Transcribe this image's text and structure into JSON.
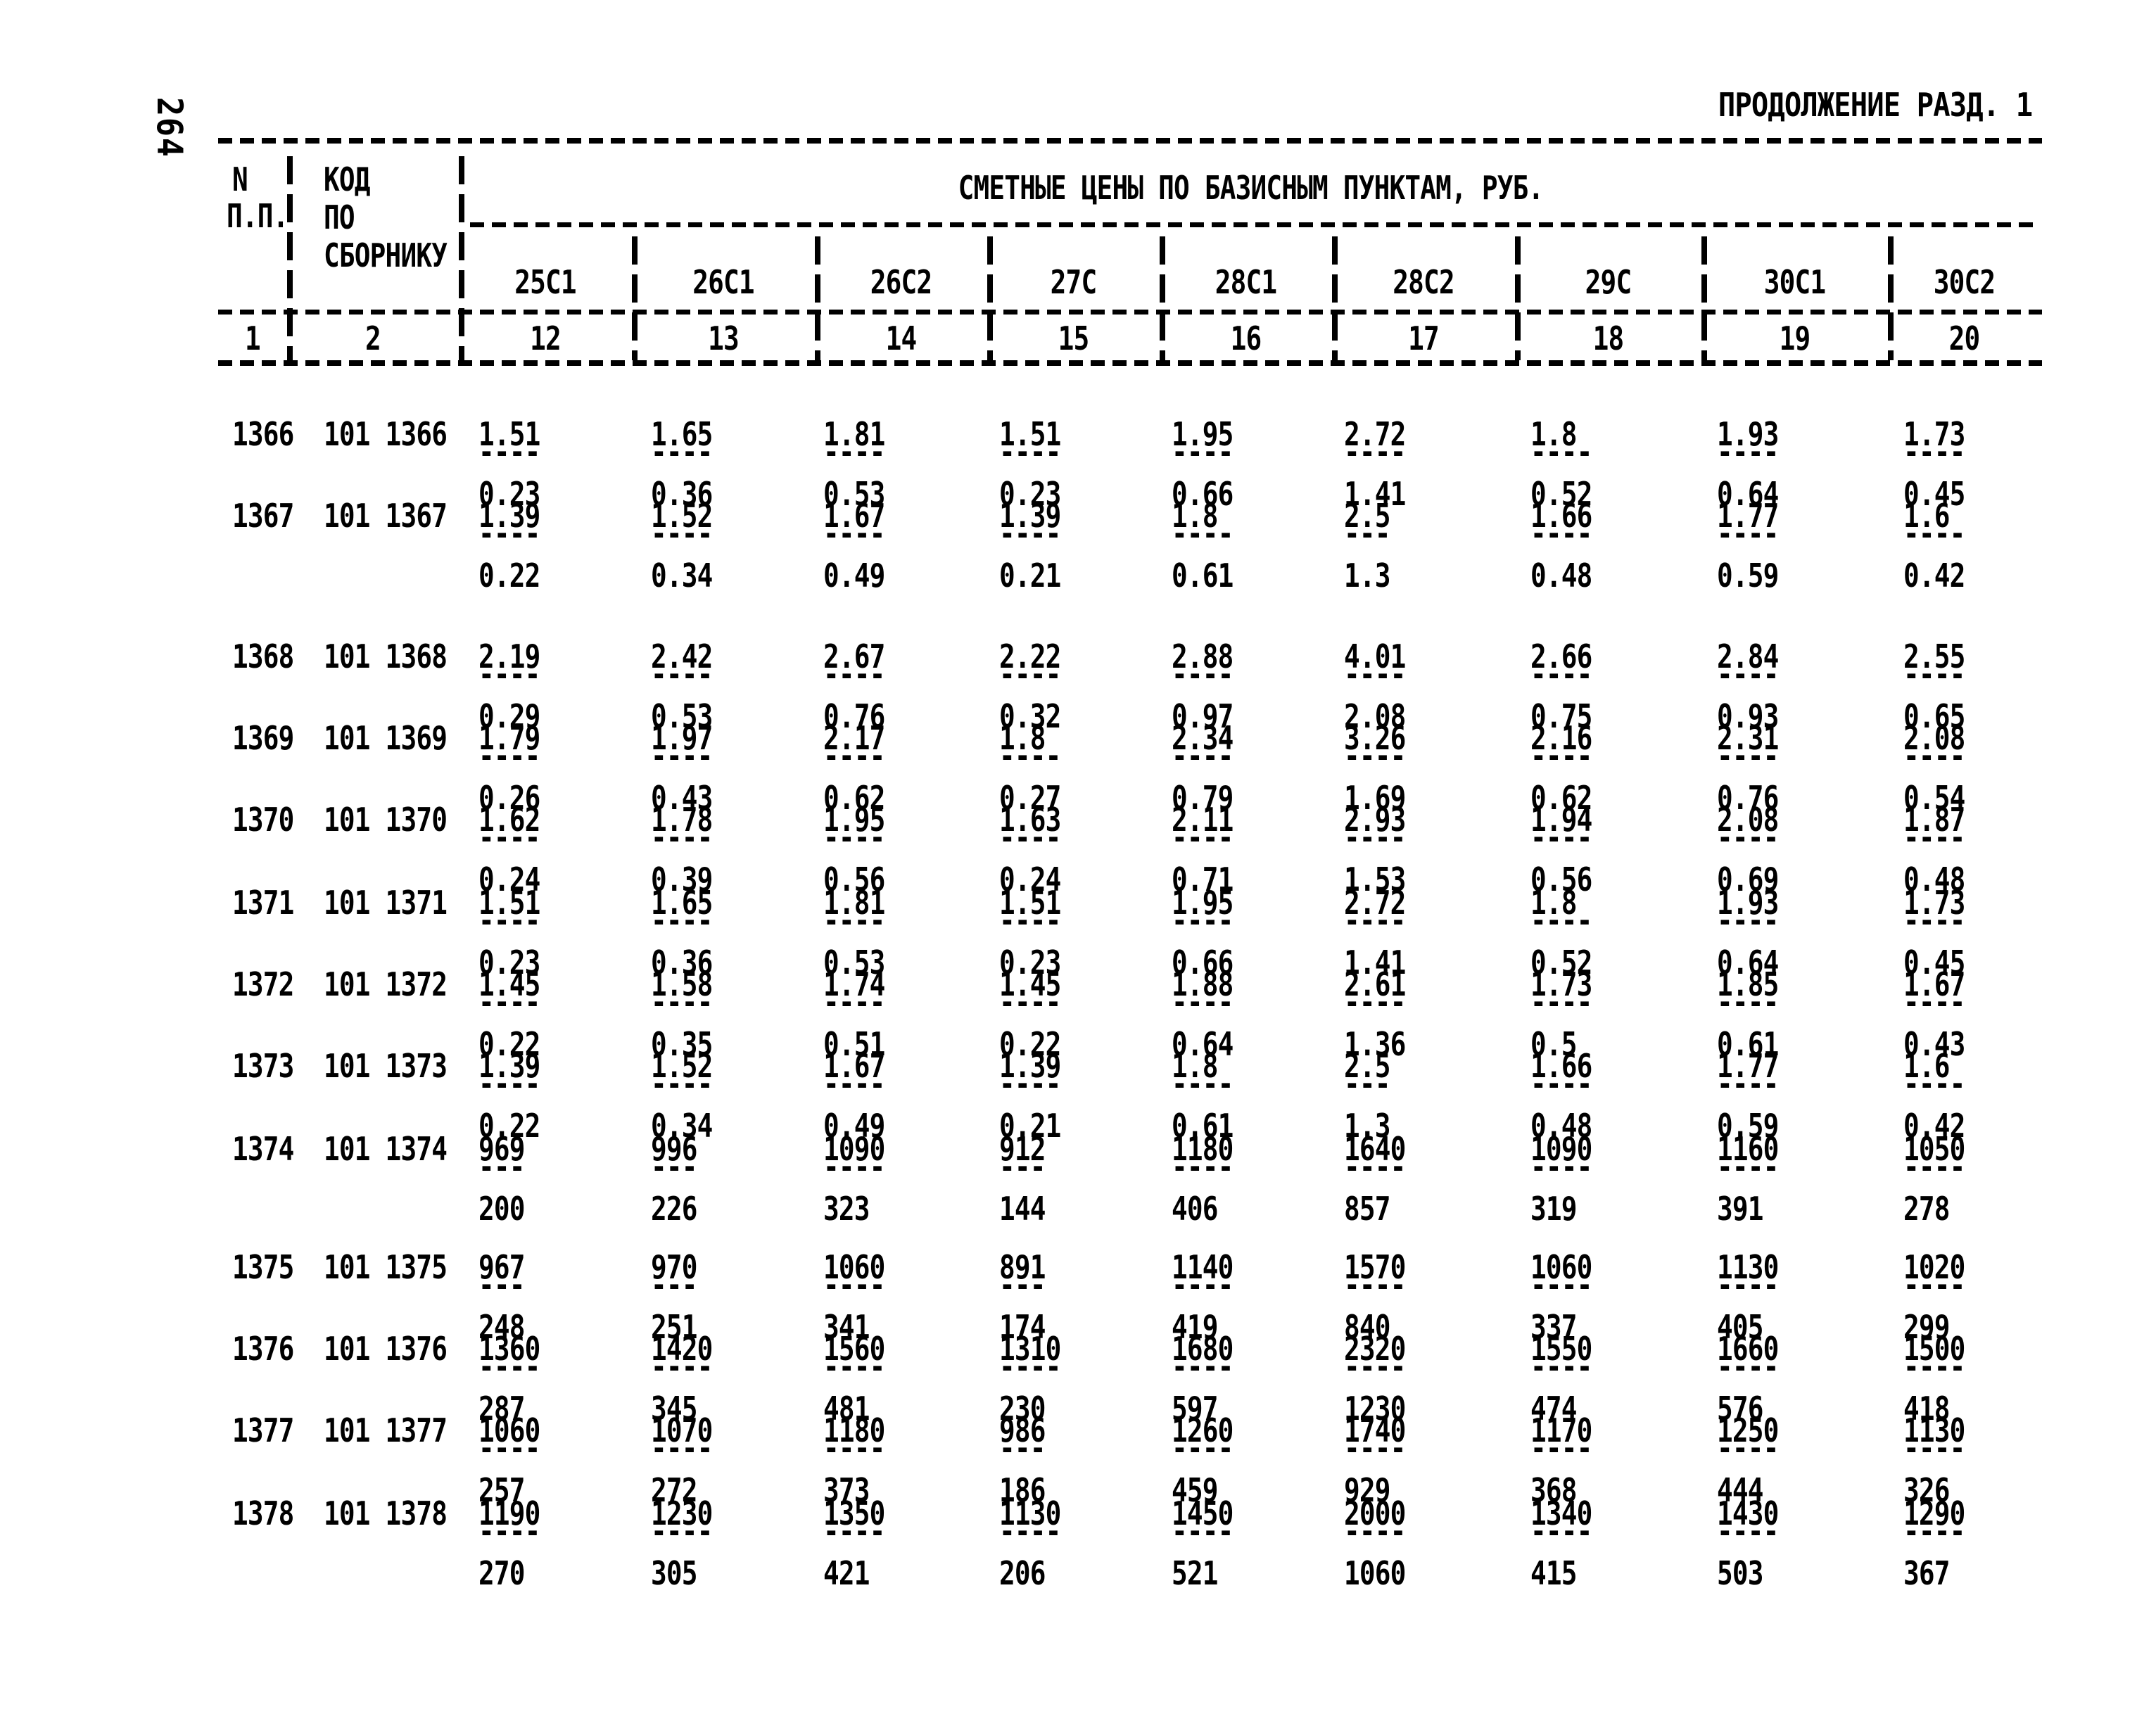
{
  "page": {
    "number": "264",
    "continuation": "ПРОДОЛЖЕНИЕ РАЗД. 1"
  },
  "table": {
    "title": "СМЕТНЫЕ ЦЕНЫ ПО БАЗИСНЫМ ПУНКТАМ, РУБ.",
    "col_npp": [
      "N",
      "П.П."
    ],
    "col_code": [
      "КОД",
      "ПО",
      "СБОРНИКУ"
    ],
    "price_columns": [
      "25С1",
      "26С1",
      "26С2",
      "27С",
      "28С1",
      "28С2",
      "29С",
      "30С1",
      "30С2"
    ],
    "column_numbers": [
      "1",
      "2",
      "12",
      "13",
      "14",
      "15",
      "16",
      "17",
      "18",
      "19",
      "20"
    ],
    "rows": [
      {
        "n": "1366",
        "code": "101 1366",
        "top": [
          "1.51",
          "1.65",
          "1.81",
          "1.51",
          "1.95",
          "2.72",
          "1.8",
          "1.93",
          "1.73"
        ],
        "dash": [
          "----",
          "----",
          "----",
          "----",
          "----",
          "----",
          "----",
          "----",
          "----"
        ],
        "bottom": [
          "0.23",
          "0.36",
          "0.53",
          "0.23",
          "0.66",
          "1.41",
          "0.52",
          "0.64",
          "0.45"
        ]
      },
      {
        "n": "1367",
        "code": "101 1367",
        "top": [
          "1.39",
          "1.52",
          "1.67",
          "1.39",
          "1.8",
          "2.5",
          "1.66",
          "1.77",
          "1.6"
        ],
        "dash": [
          "----",
          "----",
          "----",
          "----",
          "----",
          "---",
          "----",
          "----",
          "----"
        ],
        "bottom": [
          "0.22",
          "0.34",
          "0.49",
          "0.21",
          "0.61",
          "1.3",
          "0.48",
          "0.59",
          "0.42"
        ]
      },
      {
        "n": "1368",
        "code": "101 1368",
        "top": [
          "2.19",
          "2.42",
          "2.67",
          "2.22",
          "2.88",
          "4.01",
          "2.66",
          "2.84",
          "2.55"
        ],
        "dash": [
          "----",
          "----",
          "----",
          "----",
          "----",
          "----",
          "----",
          "----",
          "----"
        ],
        "bottom": [
          "0.29",
          "0.53",
          "0.76",
          "0.32",
          "0.97",
          "2.08",
          "0.75",
          "0.93",
          "0.65"
        ]
      },
      {
        "n": "1369",
        "code": "101 1369",
        "top": [
          "1.79",
          "1.97",
          "2.17",
          "1.8",
          "2.34",
          "3.26",
          "2.16",
          "2.31",
          "2.08"
        ],
        "dash": [
          "----",
          "----",
          "----",
          "----",
          "----",
          "----",
          "----",
          "----",
          "----"
        ],
        "bottom": [
          "0.26",
          "0.43",
          "0.62",
          "0.27",
          "0.79",
          "1.69",
          "0.62",
          "0.76",
          "0.54"
        ]
      },
      {
        "n": "1370",
        "code": "101 1370",
        "top": [
          "1.62",
          "1.78",
          "1.95",
          "1.63",
          "2.11",
          "2.93",
          "1.94",
          "2.08",
          "1.87"
        ],
        "dash": [
          "----",
          "----",
          "----",
          "----",
          "----",
          "----",
          "----",
          "----",
          "----"
        ],
        "bottom": [
          "0.24",
          "0.39",
          "0.56",
          "0.24",
          "0.71",
          "1.53",
          "0.56",
          "0.69",
          "0.48"
        ]
      },
      {
        "n": "1371",
        "code": "101 1371",
        "top": [
          "1.51",
          "1.65",
          "1.81",
          "1.51",
          "1.95",
          "2.72",
          "1.8",
          "1.93",
          "1.73"
        ],
        "dash": [
          "----",
          "----",
          "----",
          "----",
          "----",
          "----",
          "----",
          "----",
          "----"
        ],
        "bottom": [
          "0.23",
          "0.36",
          "0.53",
          "0.23",
          "0.66",
          "1.41",
          "0.52",
          "0.64",
          "0.45"
        ]
      },
      {
        "n": "1372",
        "code": "101 1372",
        "top": [
          "1.45",
          "1.58",
          "1.74",
          "1.45",
          "1.88",
          "2.61",
          "1.73",
          "1.85",
          "1.67"
        ],
        "dash": [
          "----",
          "----",
          "----",
          "----",
          "----",
          "----",
          "----",
          "----",
          "----"
        ],
        "bottom": [
          "0.22",
          "0.35",
          "0.51",
          "0.22",
          "0.64",
          "1.36",
          "0.5",
          "0.61",
          "0.43"
        ]
      },
      {
        "n": "1373",
        "code": "101 1373",
        "top": [
          "1.39",
          "1.52",
          "1.67",
          "1.39",
          "1.8",
          "2.5",
          "1.66",
          "1.77",
          "1.6"
        ],
        "dash": [
          "----",
          "----",
          "----",
          "----",
          "----",
          "---",
          "----",
          "----",
          "----"
        ],
        "bottom": [
          "0.22",
          "0.34",
          "0.49",
          "0.21",
          "0.61",
          "1.3",
          "0.48",
          "0.59",
          "0.42"
        ]
      },
      {
        "n": "1374",
        "code": "101 1374",
        "top": [
          "969",
          "996",
          "1090",
          "912",
          "1180",
          "1640",
          "1090",
          "1160",
          "1050"
        ],
        "dash": [
          "---",
          "---",
          "----",
          "---",
          "----",
          "----",
          "----",
          "----",
          "----"
        ],
        "bottom": [
          "200",
          "226",
          "323",
          "144",
          "406",
          "857",
          "319",
          "391",
          "278"
        ]
      },
      {
        "n": "1375",
        "code": "101 1375",
        "top": [
          "967",
          "970",
          "1060",
          "891",
          "1140",
          "1570",
          "1060",
          "1130",
          "1020"
        ],
        "dash": [
          "---",
          "---",
          "----",
          "---",
          "----",
          "----",
          "----",
          "----",
          "----"
        ],
        "bottom": [
          "248",
          "251",
          "341",
          "174",
          "419",
          "840",
          "337",
          "405",
          "299"
        ]
      },
      {
        "n": "1376",
        "code": "101 1376",
        "top": [
          "1360",
          "1420",
          "1560",
          "1310",
          "1680",
          "2320",
          "1550",
          "1660",
          "1500"
        ],
        "dash": [
          "----",
          "----",
          "----",
          "----",
          "----",
          "----",
          "----",
          "----",
          "----"
        ],
        "bottom": [
          "287",
          "345",
          "481",
          "230",
          "597",
          "1230",
          "474",
          "576",
          "418"
        ]
      },
      {
        "n": "1377",
        "code": "101 1377",
        "top": [
          "1060",
          "1070",
          "1180",
          "986",
          "1260",
          "1740",
          "1170",
          "1250",
          "1130"
        ],
        "dash": [
          "----",
          "----",
          "----",
          "---",
          "----",
          "----",
          "----",
          "----",
          "----"
        ],
        "bottom": [
          "257",
          "272",
          "373",
          "186",
          "459",
          "929",
          "368",
          "444",
          "326"
        ]
      },
      {
        "n": "1378",
        "code": "101 1378",
        "top": [
          "1190",
          "1230",
          "1350",
          "1130",
          "1450",
          "2000",
          "1340",
          "1430",
          "1290"
        ],
        "dash": [
          "----",
          "----",
          "----",
          "----",
          "----",
          "----",
          "----",
          "----",
          "----"
        ],
        "bottom": [
          "270",
          "305",
          "421",
          "206",
          "521",
          "1060",
          "415",
          "503",
          "367"
        ]
      }
    ]
  }
}
